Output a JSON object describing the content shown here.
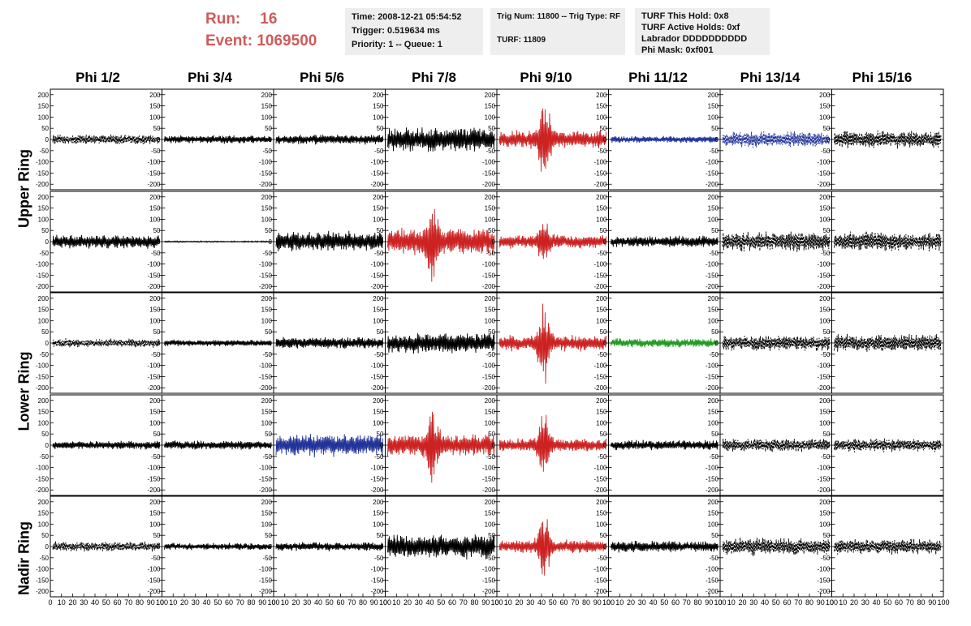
{
  "run": {
    "run_label": "Run:",
    "run_value": "16",
    "event_label": "Event:",
    "event_value": "1069500"
  },
  "time_box": {
    "time": "Time: 2008-12-21 05:54:52",
    "trigger": "Trigger: 0.519634 ms",
    "priority": "Priority: 1 -- Queue: 1"
  },
  "trig_box": {
    "trig": "Trig Num: 11800 -- Trig Type: RF",
    "turf": "TURF: 11809"
  },
  "turf_box": {
    "hold": "TURF This Hold: 0x8",
    "active": "TURF Active Holds: 0xf",
    "labrador": "Labrador DDDDDDDDDD",
    "mask": "Phi Mask: 0xf001"
  },
  "phi_labels": [
    "Phi 1/2",
    "Phi 3/4",
    "Phi 5/6",
    "Phi 7/8",
    "Phi 9/10",
    "Phi 11/12",
    "Phi 13/14",
    "Phi 15/16"
  ],
  "ring_labels": {
    "upper": "Upper Ring",
    "lower": "Lower Ring",
    "nadir": "Nadir Ring"
  },
  "axis": {
    "y_ticks": [
      "200",
      "150",
      "100",
      "50",
      "0",
      "-50",
      "-100",
      "-150",
      "-200"
    ],
    "y_tick_values": [
      200,
      150,
      100,
      50,
      0,
      -50,
      -100,
      -150,
      -200
    ],
    "x_ticks": [
      "0",
      "10",
      "20",
      "30",
      "40",
      "50",
      "60",
      "70",
      "80",
      "90",
      "100"
    ],
    "ylim": [
      -210,
      210
    ],
    "xlim": [
      0,
      100
    ]
  },
  "colors": {
    "run_text": "#d05a5a",
    "black": "#000000",
    "red": "#cc2222",
    "blue": "#223399",
    "green": "#229922"
  },
  "panels": [
    [
      {
        "c": "black",
        "a": 22,
        "d": 1
      },
      {
        "c": "black",
        "a": 18,
        "d": 0
      },
      {
        "c": "black",
        "a": 22,
        "d": 0
      },
      {
        "c": "black",
        "a": 55,
        "d": 0
      },
      {
        "c": "red",
        "a": 40,
        "s": 200,
        "d": 0
      },
      {
        "c": "blue",
        "a": 15,
        "d": 0
      },
      {
        "c": "blue",
        "a": 35,
        "d": 1
      },
      {
        "c": "black",
        "a": 40,
        "d": 1
      }
    ],
    [
      {
        "c": "black",
        "a": 30,
        "d": 0
      },
      {
        "c": "black",
        "a": 3,
        "d": 0
      },
      {
        "c": "black",
        "a": 45,
        "d": 0
      },
      {
        "c": "red",
        "a": 60,
        "s": 170,
        "d": 0
      },
      {
        "c": "red",
        "a": 30,
        "s": 90,
        "d": 0
      },
      {
        "c": "black",
        "a": 25,
        "d": 0
      },
      {
        "c": "black",
        "a": 45,
        "d": 1
      },
      {
        "c": "black",
        "a": 45,
        "d": 1
      }
    ],
    [
      {
        "c": "black",
        "a": 20,
        "d": 1
      },
      {
        "c": "black",
        "a": 15,
        "d": 0
      },
      {
        "c": "black",
        "a": 25,
        "d": 0
      },
      {
        "c": "black",
        "a": 45,
        "d": 0
      },
      {
        "c": "red",
        "a": 35,
        "s": 180,
        "d": 0
      },
      {
        "c": "green",
        "a": 20,
        "d": 0
      },
      {
        "c": "black",
        "a": 35,
        "d": 1
      },
      {
        "c": "black",
        "a": 40,
        "d": 1
      }
    ],
    [
      {
        "c": "black",
        "a": 20,
        "d": 0
      },
      {
        "c": "black",
        "a": 20,
        "d": 0
      },
      {
        "c": "blue",
        "a": 50,
        "d": 0
      },
      {
        "c": "red",
        "a": 50,
        "s": 150,
        "d": 0
      },
      {
        "c": "red",
        "a": 30,
        "s": 150,
        "d": 0
      },
      {
        "c": "black",
        "a": 22,
        "d": 0
      },
      {
        "c": "black",
        "a": 30,
        "d": 1
      },
      {
        "c": "black",
        "a": 30,
        "d": 1
      }
    ],
    [
      {
        "c": "black",
        "a": 22,
        "d": 1
      },
      {
        "c": "black",
        "a": 15,
        "d": 0
      },
      {
        "c": "black",
        "a": 20,
        "d": 0
      },
      {
        "c": "black",
        "a": 55,
        "d": 0
      },
      {
        "c": "red",
        "a": 30,
        "s": 160,
        "d": 0
      },
      {
        "c": "black",
        "a": 25,
        "d": 0
      },
      {
        "c": "black",
        "a": 40,
        "d": 1
      },
      {
        "c": "black",
        "a": 35,
        "d": 1
      }
    ]
  ]
}
